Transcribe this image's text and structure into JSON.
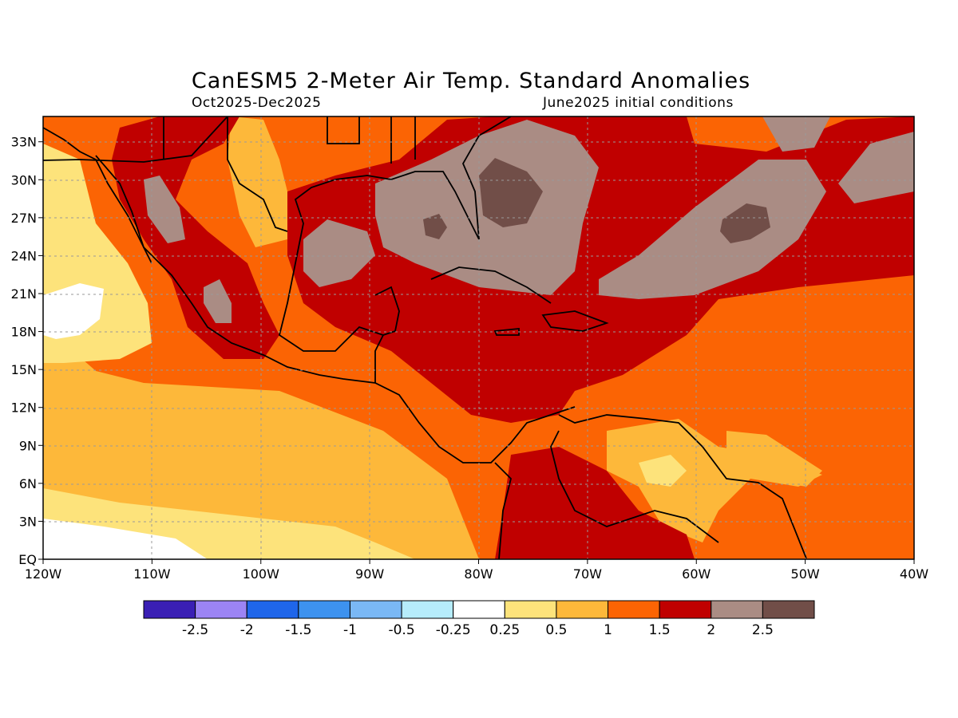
{
  "title": "CanESM5 2-Meter Air Temp. Standard Anomalies",
  "subtitle_left": "Oct2025-Dec2025",
  "subtitle_right": "June2025 initial conditions",
  "map": {
    "lon_range": [
      -120,
      -40
    ],
    "lat_range": [
      0,
      35
    ],
    "grid": true,
    "x_ticks": [
      "120W",
      "110W",
      "100W",
      "90W",
      "80W",
      "70W",
      "60W",
      "50W",
      "40W"
    ],
    "y_ticks": [
      "EQ",
      "3N",
      "6N",
      "9N",
      "12N",
      "15N",
      "18N",
      "21N",
      "24N",
      "27N",
      "30N",
      "33N"
    ]
  },
  "colorbar": {
    "colors": [
      "#3a1fb4",
      "#9c84f4",
      "#1f66ea",
      "#3d92ef",
      "#7ab8f5",
      "#b6ecfb",
      "#ffffff",
      "#fde37b",
      "#fdb83a",
      "#fb6404",
      "#c00000",
      "#aa8c84",
      "#714e48"
    ],
    "labels": [
      "-2.5",
      "-2",
      "-1.5",
      "-1",
      "-0.5",
      "-0.25",
      "0.25",
      "0.5",
      "1",
      "1.5",
      "2",
      "2.5"
    ]
  }
}
